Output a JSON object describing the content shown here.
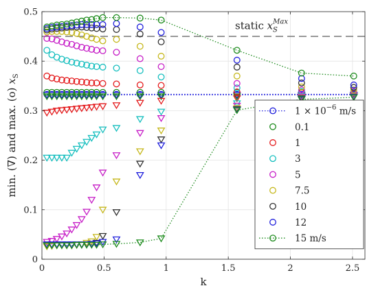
{
  "chart_data": {
    "type": "scatter",
    "xlabel": "k",
    "ylabel_parts": {
      "text1": "min. (",
      "sym_min": "∇",
      "text2": ") and max. (o) ",
      "var": "x",
      "sub": "S"
    },
    "xlim": [
      0,
      2.6
    ],
    "ylim": [
      0,
      0.5
    ],
    "xticks": [
      0,
      0.5,
      1,
      1.5,
      2,
      2.5
    ],
    "xtick_labels": [
      "0",
      "0.5",
      "1",
      "1.5",
      "2",
      "2.5"
    ],
    "yticks": [
      0,
      0.1,
      0.2,
      0.3,
      0.4,
      0.5
    ],
    "ytick_labels": [
      "0",
      "0.1",
      "0.2",
      "0.3",
      "0.4",
      "0.5"
    ],
    "grid": true,
    "static_line": {
      "value": 0.45,
      "label_text": "static ",
      "label_var": "x",
      "label_sub": "S",
      "label_sup": "Max",
      "color": "#808080"
    },
    "legend": {
      "placement": "lower-right",
      "entries": [
        {
          "label": "1 × 10",
          "sup": "−6",
          "suffix": " m/s",
          "color": "#1f1fdc",
          "line": "dotted"
        },
        {
          "label": "0.1",
          "color": "#1d8b1d"
        },
        {
          "label": "1",
          "color": "#e41a1c"
        },
        {
          "label": "3",
          "color": "#17bfbf"
        },
        {
          "label": "5",
          "color": "#c71fc7"
        },
        {
          "label": "7.5",
          "color": "#c6b81d"
        },
        {
          "label": "10",
          "color": "#333333"
        },
        {
          "label": "12",
          "color": "#1f1fdc"
        },
        {
          "label": "15 m/s",
          "color": "#1d8b1d",
          "line": "dotted"
        }
      ]
    },
    "series": [
      {
        "name": "1 × 10^−6 m/s",
        "color": "#1f1fdc",
        "line": true,
        "x": [
          0.04,
          0.08,
          0.12,
          0.16,
          0.2,
          0.24,
          0.28,
          0.32,
          0.36,
          0.4,
          0.44,
          0.49,
          0.6,
          0.79,
          0.96,
          1.57,
          2.09,
          2.51
        ],
        "max": [
          0.333,
          0.333,
          0.333,
          0.333,
          0.333,
          0.333,
          0.333,
          0.333,
          0.333,
          0.333,
          0.333,
          0.333,
          0.333,
          0.333,
          0.333,
          0.333,
          0.333,
          0.333
        ],
        "min": [
          0.332,
          0.332,
          0.332,
          0.332,
          0.332,
          0.332,
          0.332,
          0.332,
          0.332,
          0.332,
          0.332,
          0.332,
          0.332,
          0.332,
          0.332,
          0.332,
          0.332,
          0.332
        ]
      },
      {
        "name": "0.1",
        "color": "#1d8b1d",
        "line": false,
        "x": [
          0.04,
          0.08,
          0.12,
          0.16,
          0.2,
          0.24,
          0.28,
          0.32,
          0.36,
          0.4,
          0.44,
          0.49,
          0.6,
          0.79,
          0.96,
          1.57,
          2.09,
          2.51
        ],
        "max": [
          0.337,
          0.337,
          0.337,
          0.337,
          0.337,
          0.337,
          0.337,
          0.337,
          0.337,
          0.337,
          0.337,
          0.337,
          0.337,
          0.337,
          0.337,
          0.337,
          0.337,
          0.337
        ],
        "min": [
          0.329,
          0.329,
          0.329,
          0.329,
          0.329,
          0.329,
          0.329,
          0.329,
          0.329,
          0.329,
          0.329,
          0.329,
          0.329,
          0.329,
          0.329,
          0.329,
          0.329,
          0.329
        ]
      },
      {
        "name": "1",
        "color": "#e41a1c",
        "line": false,
        "x": [
          0.04,
          0.08,
          0.12,
          0.16,
          0.2,
          0.24,
          0.28,
          0.32,
          0.36,
          0.4,
          0.44,
          0.49,
          0.6,
          0.79,
          0.96,
          1.57,
          2.09,
          2.51
        ],
        "max": [
          0.37,
          0.366,
          0.364,
          0.362,
          0.361,
          0.36,
          0.359,
          0.358,
          0.357,
          0.356,
          0.356,
          0.355,
          0.354,
          0.352,
          0.351,
          0.338,
          0.336,
          0.335
        ],
        "min": [
          0.296,
          0.298,
          0.3,
          0.301,
          0.302,
          0.303,
          0.304,
          0.305,
          0.306,
          0.307,
          0.308,
          0.309,
          0.311,
          0.316,
          0.32,
          0.325,
          0.329,
          0.33
        ]
      },
      {
        "name": "3",
        "color": "#17bfbf",
        "line": false,
        "x": [
          0.04,
          0.08,
          0.12,
          0.16,
          0.2,
          0.24,
          0.28,
          0.32,
          0.36,
          0.4,
          0.44,
          0.49,
          0.6,
          0.79,
          0.96,
          1.57,
          2.09,
          2.51
        ],
        "max": [
          0.422,
          0.413,
          0.408,
          0.404,
          0.401,
          0.398,
          0.396,
          0.394,
          0.392,
          0.39,
          0.389,
          0.388,
          0.386,
          0.381,
          0.368,
          0.346,
          0.339,
          0.337
        ],
        "min": [
          0.205,
          0.205,
          0.205,
          0.205,
          0.205,
          0.215,
          0.223,
          0.23,
          0.237,
          0.245,
          0.252,
          0.262,
          0.265,
          0.283,
          0.298,
          0.315,
          0.329,
          0.331
        ]
      },
      {
        "name": "5",
        "color": "#c71fc7",
        "line": false,
        "x": [
          0.04,
          0.08,
          0.12,
          0.16,
          0.2,
          0.24,
          0.28,
          0.32,
          0.36,
          0.4,
          0.44,
          0.49,
          0.6,
          0.79,
          0.96,
          1.57,
          2.09,
          2.51
        ],
        "max": [
          0.446,
          0.445,
          0.442,
          0.439,
          0.436,
          0.434,
          0.431,
          0.428,
          0.426,
          0.424,
          0.422,
          0.421,
          0.418,
          0.405,
          0.389,
          0.355,
          0.342,
          0.339
        ],
        "min": [
          0.035,
          0.037,
          0.041,
          0.046,
          0.052,
          0.06,
          0.069,
          0.081,
          0.096,
          0.12,
          0.145,
          0.175,
          0.21,
          0.255,
          0.285,
          0.31,
          0.328,
          0.33
        ]
      },
      {
        "name": "7.5",
        "color": "#c6b81d",
        "line": false,
        "x": [
          0.04,
          0.08,
          0.12,
          0.16,
          0.2,
          0.24,
          0.28,
          0.32,
          0.36,
          0.4,
          0.44,
          0.49,
          0.6,
          0.79,
          0.96,
          1.57,
          2.09,
          2.51
        ],
        "max": [
          0.459,
          0.46,
          0.46,
          0.46,
          0.459,
          0.458,
          0.456,
          0.453,
          0.45,
          0.447,
          0.444,
          0.441,
          0.444,
          0.43,
          0.41,
          0.37,
          0.348,
          0.342
        ],
        "min": [
          0.026,
          0.027,
          0.028,
          0.028,
          0.028,
          0.028,
          0.029,
          0.03,
          0.033,
          0.036,
          0.045,
          0.1,
          0.157,
          0.218,
          0.26,
          0.305,
          0.326,
          0.329
        ]
      },
      {
        "name": "10",
        "color": "#333333",
        "line": false,
        "x": [
          0.04,
          0.08,
          0.12,
          0.16,
          0.2,
          0.24,
          0.28,
          0.32,
          0.36,
          0.4,
          0.44,
          0.49,
          0.6,
          0.79,
          0.96,
          1.57,
          2.09,
          2.51
        ],
        "max": [
          0.463,
          0.465,
          0.466,
          0.467,
          0.468,
          0.469,
          0.469,
          0.469,
          0.468,
          0.467,
          0.466,
          0.465,
          0.464,
          0.455,
          0.439,
          0.388,
          0.356,
          0.347
        ],
        "min": [
          0.029,
          0.029,
          0.029,
          0.029,
          0.029,
          0.029,
          0.029,
          0.029,
          0.03,
          0.031,
          0.033,
          0.047,
          0.095,
          0.193,
          0.242,
          0.303,
          0.325,
          0.328
        ]
      },
      {
        "name": "12",
        "color": "#1f1fdc",
        "line": false,
        "x": [
          0.04,
          0.08,
          0.12,
          0.16,
          0.2,
          0.24,
          0.28,
          0.32,
          0.36,
          0.4,
          0.44,
          0.49,
          0.6,
          0.79,
          0.96,
          1.57,
          2.09,
          2.51
        ],
        "max": [
          0.466,
          0.468,
          0.469,
          0.47,
          0.471,
          0.472,
          0.473,
          0.474,
          0.474,
          0.474,
          0.474,
          0.474,
          0.476,
          0.469,
          0.458,
          0.402,
          0.365,
          0.352
        ],
        "min": [
          0.03,
          0.03,
          0.03,
          0.03,
          0.03,
          0.03,
          0.03,
          0.03,
          0.03,
          0.031,
          0.032,
          0.035,
          0.04,
          0.17,
          0.23,
          0.302,
          0.324,
          0.328
        ]
      },
      {
        "name": "15 m/s",
        "color": "#1d8b1d",
        "line": true,
        "x": [
          0.04,
          0.08,
          0.12,
          0.16,
          0.2,
          0.24,
          0.28,
          0.32,
          0.36,
          0.4,
          0.44,
          0.49,
          0.6,
          0.79,
          0.96,
          1.57,
          2.09,
          2.51
        ],
        "max": [
          0.469,
          0.471,
          0.473,
          0.474,
          0.475,
          0.477,
          0.479,
          0.481,
          0.483,
          0.484,
          0.486,
          0.488,
          0.488,
          0.487,
          0.483,
          0.422,
          0.376,
          0.37
        ],
        "min": [
          0.028,
          0.028,
          0.028,
          0.028,
          0.028,
          0.028,
          0.029,
          0.029,
          0.029,
          0.029,
          0.029,
          0.03,
          0.031,
          0.034,
          0.042,
          0.301,
          0.323,
          0.327
        ]
      }
    ]
  }
}
